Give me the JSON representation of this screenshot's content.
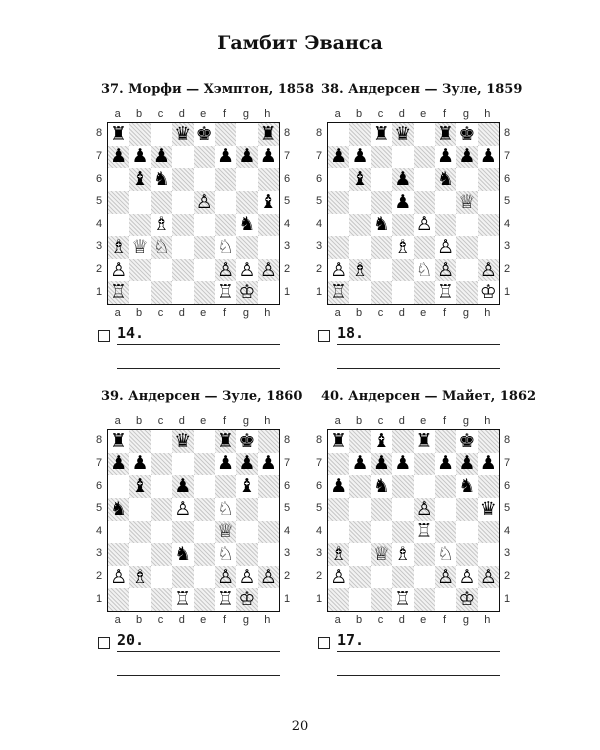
{
  "title": "Гамбит Эванса",
  "page_number": "20",
  "files": [
    "a",
    "b",
    "c",
    "d",
    "e",
    "f",
    "g",
    "h"
  ],
  "ranks": [
    "8",
    "7",
    "6",
    "5",
    "4",
    "3",
    "2",
    "1"
  ],
  "diagrams": [
    {
      "heading": "37. Морфи — Хэмптон, 1858",
      "answer": "14.",
      "position": [
        "r..qk..r",
        "ppp..ppp",
        ".bn.....",
        "....P..b",
        "..B...n.",
        "BQN..N..",
        "P....PPP",
        "R....RK."
      ]
    },
    {
      "heading": "38. Андерсен — Зуле, 1859",
      "answer": "18.",
      "position": [
        "..rq.rk.",
        "pp...ppp",
        ".b.p.n..",
        "...p..Q.",
        "..n.P...",
        "...B.P..",
        "PB..NP.P",
        "R....R.K"
      ]
    },
    {
      "heading": "39. Андерсен — Зуле, 1860",
      "answer": "20.",
      "position": [
        "r..q.rk.",
        "pp...ppp",
        ".b.p..b.",
        "n..P.N..",
        ".....Q..",
        "...n.N..",
        "PB...PPP",
        "...R.RK."
      ]
    },
    {
      "heading": "40. Андерсен — Майет, 1862",
      "answer": "17.",
      "position": [
        "r.b.r.k.",
        ".ppp.ppp",
        "p.n...n.",
        "....P..q",
        "....R...",
        "B.QB.N..",
        "P....PPP",
        "...R..K."
      ]
    }
  ]
}
